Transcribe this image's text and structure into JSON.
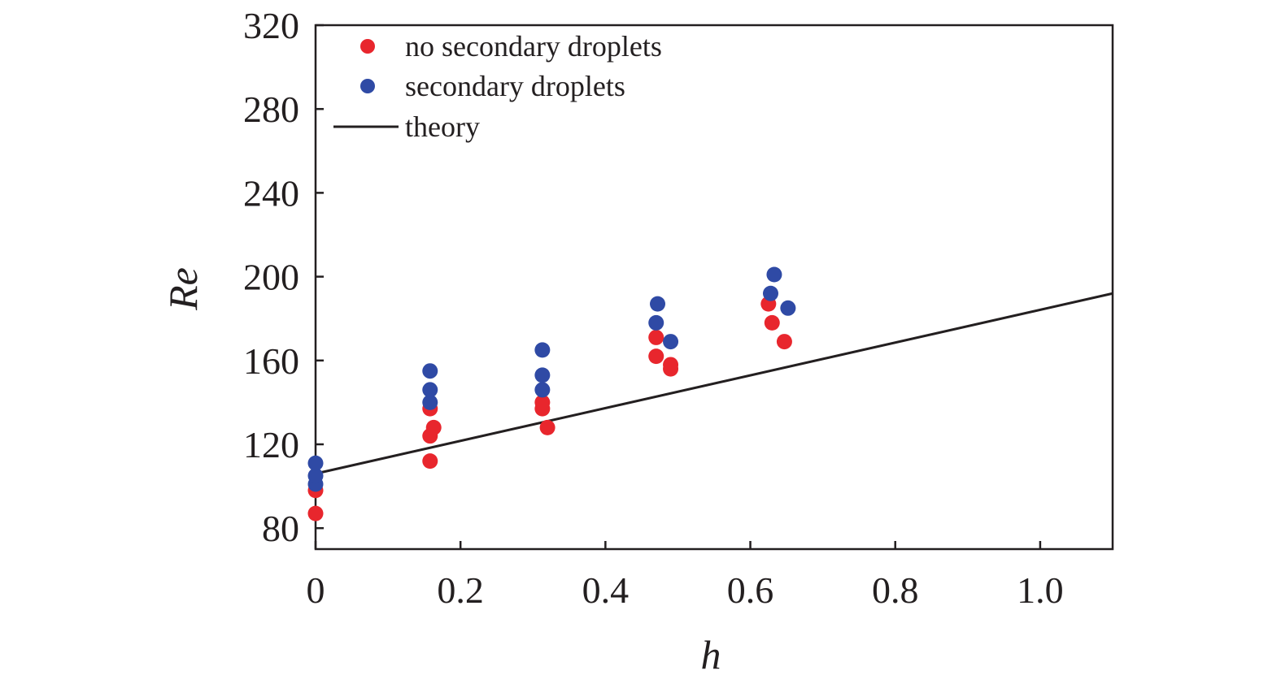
{
  "chart_data": {
    "type": "scatter",
    "title": "",
    "xlabel": "h",
    "ylabel": "Re",
    "xlim": [
      0,
      1.1
    ],
    "ylim": [
      70,
      320
    ],
    "grid": false,
    "legend_position": "top-left",
    "x_ticks": [
      {
        "value": 0,
        "label": "0"
      },
      {
        "value": 0.2,
        "label": "0.2"
      },
      {
        "value": 0.4,
        "label": "0.4"
      },
      {
        "value": 0.6,
        "label": "0.6"
      },
      {
        "value": 0.8,
        "label": "0.8"
      },
      {
        "value": 1.0,
        "label": "1.0"
      }
    ],
    "y_ticks": [
      {
        "value": 80,
        "label": "80"
      },
      {
        "value": 120,
        "label": "120"
      },
      {
        "value": 160,
        "label": "160"
      },
      {
        "value": 200,
        "label": "200"
      },
      {
        "value": 240,
        "label": "240"
      },
      {
        "value": 280,
        "label": "280"
      },
      {
        "value": 320,
        "label": "320"
      }
    ],
    "series": [
      {
        "name": "no secondary droplets",
        "kind": "scatter",
        "color": "#e8262d",
        "points": [
          {
            "x": 0.0,
            "y": 87
          },
          {
            "x": 0.0,
            "y": 98
          },
          {
            "x": 0.158,
            "y": 112
          },
          {
            "x": 0.158,
            "y": 124
          },
          {
            "x": 0.163,
            "y": 128
          },
          {
            "x": 0.158,
            "y": 137
          },
          {
            "x": 0.313,
            "y": 137
          },
          {
            "x": 0.313,
            "y": 140
          },
          {
            "x": 0.32,
            "y": 128
          },
          {
            "x": 0.47,
            "y": 162
          },
          {
            "x": 0.47,
            "y": 171
          },
          {
            "x": 0.49,
            "y": 156
          },
          {
            "x": 0.49,
            "y": 158
          },
          {
            "x": 0.625,
            "y": 187
          },
          {
            "x": 0.63,
            "y": 178
          },
          {
            "x": 0.647,
            "y": 169
          }
        ]
      },
      {
        "name": "secondary droplets",
        "kind": "scatter",
        "color": "#2f4aa5",
        "points": [
          {
            "x": 0.0,
            "y": 101
          },
          {
            "x": 0.0,
            "y": 105
          },
          {
            "x": 0.0,
            "y": 111
          },
          {
            "x": 0.158,
            "y": 140
          },
          {
            "x": 0.158,
            "y": 146
          },
          {
            "x": 0.158,
            "y": 155
          },
          {
            "x": 0.313,
            "y": 146
          },
          {
            "x": 0.313,
            "y": 153
          },
          {
            "x": 0.313,
            "y": 165
          },
          {
            "x": 0.47,
            "y": 178
          },
          {
            "x": 0.472,
            "y": 187
          },
          {
            "x": 0.49,
            "y": 169
          },
          {
            "x": 0.628,
            "y": 192
          },
          {
            "x": 0.633,
            "y": 201
          },
          {
            "x": 0.652,
            "y": 185
          }
        ]
      },
      {
        "name": "theory",
        "kind": "line",
        "color": "#231f20",
        "points": [
          {
            "x": 0.0,
            "y": 106
          },
          {
            "x": 1.1,
            "y": 192
          }
        ]
      }
    ]
  }
}
